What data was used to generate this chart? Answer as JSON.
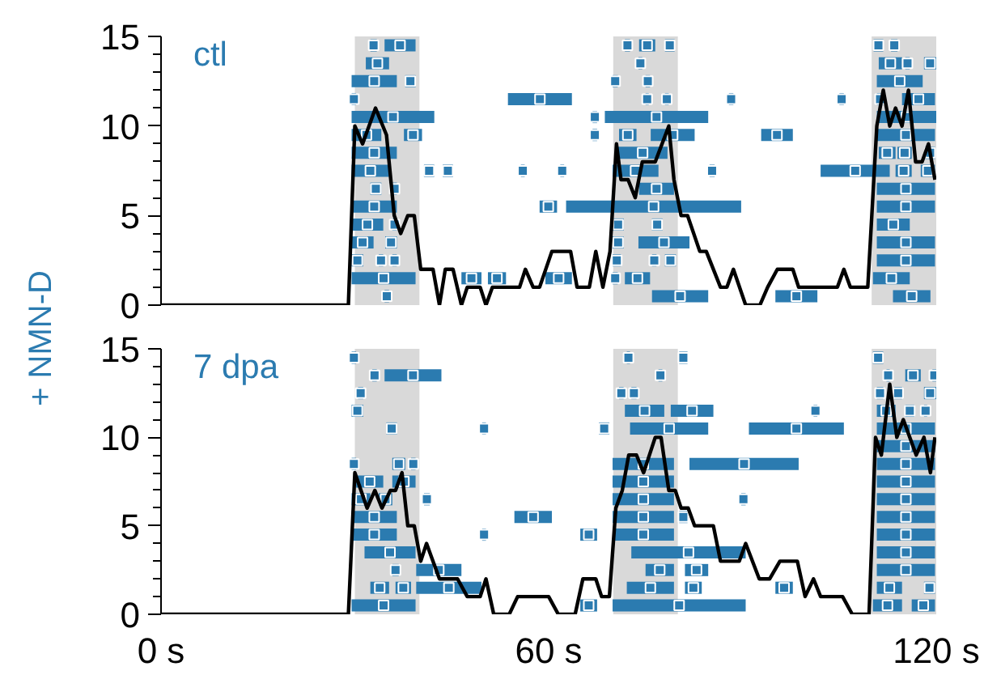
{
  "chart_data": [
    {
      "type": "line",
      "title": "ctl",
      "ylabel": "+ NMN-D",
      "xlim": [
        0,
        120
      ],
      "ylim": [
        0,
        15
      ],
      "tick_labels": "y",
      "line_style": "solid",
      "grid": false,
      "yticks": [
        0,
        {
          "value": 1,
          "label": null
        },
        {
          "value": 2,
          "label": null
        },
        {
          "value": 3,
          "label": null
        },
        {
          "value": 4,
          "label": null
        },
        5,
        {
          "value": 6,
          "label": null
        },
        {
          "value": 7,
          "label": null
        },
        {
          "value": 8,
          "label": null
        },
        {
          "value": 9,
          "label": null
        },
        10,
        {
          "value": 11,
          "label": null
        },
        {
          "value": 12,
          "label": null
        },
        {
          "value": 13,
          "label": null
        },
        {
          "value": 14,
          "label": null
        },
        15
      ],
      "bands": [
        {
          "axis": "x",
          "from": 30,
          "to": 40,
          "color": "#d9d9d9"
        },
        {
          "axis": "x",
          "from": 70,
          "to": 80,
          "color": "#d9d9d9"
        },
        {
          "axis": "x",
          "from": 110,
          "to": 120,
          "color": "#d9d9d9"
        }
      ],
      "series": [
        {
          "type": "scatter",
          "marker": "square",
          "color": "#2b7bb0",
          "x": [
            32.9,
            37,
            72.2,
            75.25,
            78.75,
            111.05,
            113.5,
            33.5,
            74.2,
            112.9,
            115.55,
            119.05,
            33,
            38.6,
            70.3,
            75.35,
            114.35,
            29.85,
            58.65,
            75.25,
            78.3,
            88.25,
            105.35,
            111.3,
            117.25,
            35.9,
            67.15,
            76.7,
            115.4,
            31.8,
            39,
            67.15,
            72.25,
            79.2,
            95.35,
            115.3,
            33,
            74.55,
            112.4,
            115.1,
            119.05,
            32.4,
            41.5,
            44.4,
            56,
            62.1,
            73.45,
            85.3,
            107.45,
            114.95,
            118.7,
            33.25,
            36.15,
            76.7,
            115.3,
            33,
            59.95,
            76.25,
            115.3,
            31.95,
            36.15,
            70.75,
            76.8,
            113.35,
            31.2,
            35.6,
            70.75,
            77.85,
            115.3,
            30.4,
            34.05,
            36.15,
            70.55,
            76.35,
            78.85,
            115.3,
            34.45,
            48.05,
            52,
            61.55,
            70.3,
            73.75,
            113.05,
            34.95,
            80.35,
            98.35,
            116.2
          ],
          "values": [
            14.5,
            14.5,
            14.5,
            14.5,
            14.5,
            14.5,
            14.5,
            13.5,
            13.5,
            13.5,
            13.5,
            13.5,
            12.5,
            12.5,
            12.5,
            12.5,
            12.5,
            11.5,
            11.5,
            11.5,
            11.5,
            11.5,
            11.5,
            11.5,
            11.5,
            10.5,
            10.5,
            10.5,
            10.5,
            9.5,
            9.5,
            9.5,
            9.5,
            9.5,
            9.5,
            9.5,
            8.5,
            8.5,
            8.5,
            8.5,
            8.5,
            7.5,
            7.5,
            7.5,
            7.5,
            7.5,
            7.5,
            7.5,
            7.5,
            7.5,
            7.5,
            6.5,
            6.5,
            6.5,
            6.5,
            5.5,
            5.5,
            5.5,
            5.5,
            4.5,
            4.5,
            4.5,
            4.5,
            4.5,
            3.5,
            3.5,
            3.5,
            3.5,
            3.5,
            2.5,
            2.5,
            2.5,
            2.5,
            2.5,
            2.5,
            2.5,
            1.5,
            1.5,
            1.5,
            1.5,
            1.5,
            1.5,
            1.5,
            0.5,
            0.5,
            0.5,
            0.5
          ],
          "xerrors": [
            [
              32.4,
              33.4
            ],
            [
              34.6,
              39.4
            ],
            [
              71.8,
              72.6
            ],
            [
              74,
              76.5
            ],
            [
              78,
              79.5
            ],
            [
              110.3,
              111.8
            ],
            [
              113,
              114
            ],
            [
              31.7,
              35.3
            ],
            [
              73.9,
              74.5
            ],
            [
              111.1,
              114.7
            ],
            [
              115.2,
              115.9
            ],
            [
              118.1,
              120
            ],
            [
              29.5,
              36.5
            ],
            [
              37.8,
              39.4
            ],
            [
              69.9,
              70.7
            ],
            [
              75,
              75.7
            ],
            [
              110.8,
              117.9
            ],
            [
              29.5,
              30.2
            ],
            [
              53.7,
              63.6
            ],
            [
              75,
              75.5
            ],
            [
              78,
              78.6
            ],
            [
              87.9,
              88.6
            ],
            [
              105,
              105.7
            ],
            [
              110.8,
              111.8
            ],
            [
              114.7,
              119.8
            ],
            [
              29.5,
              42.3
            ],
            [
              66.8,
              67.5
            ],
            [
              68.7,
              84.7
            ],
            [
              110.8,
              120
            ],
            [
              29.5,
              34.1
            ],
            [
              37.6,
              40.4
            ],
            [
              66.8,
              67.5
            ],
            [
              70.9,
              73.6
            ],
            [
              75.8,
              82.6
            ],
            [
              92.9,
              97.8
            ],
            [
              110.8,
              119.8
            ],
            [
              29.5,
              36.5
            ],
            [
              70.7,
              78.4
            ],
            [
              111.1,
              113.7
            ],
            [
              114,
              116.2
            ],
            [
              118.3,
              119.8
            ],
            [
              29.5,
              35.3
            ],
            [
              40.7,
              42.3
            ],
            [
              43.6,
              45.2
            ],
            [
              55.7,
              56.3
            ],
            [
              61.8,
              62.4
            ],
            [
              69.9,
              77
            ],
            [
              84.9,
              85.7
            ],
            [
              102.1,
              112.8
            ],
            [
              113.7,
              116.2
            ],
            [
              117.6,
              119.8
            ],
            [
              32.4,
              34.1
            ],
            [
              35.8,
              36.5
            ],
            [
              74,
              79.4
            ],
            [
              110.8,
              119.8
            ],
            [
              29.5,
              36.5
            ],
            [
              58.6,
              61.3
            ],
            [
              62.7,
              89.8
            ],
            [
              110.8,
              119.8
            ],
            [
              29.5,
              34.4
            ],
            [
              35.8,
              36.5
            ],
            [
              69.9,
              71.6
            ],
            [
              76,
              77.6
            ],
            [
              110.8,
              115.9
            ],
            [
              29.5,
              32.9
            ],
            [
              34.7,
              36.5
            ],
            [
              69.9,
              71.6
            ],
            [
              73.9,
              81.8
            ],
            [
              110.8,
              119.8
            ],
            [
              29.5,
              31.3
            ],
            [
              33.7,
              34.4
            ],
            [
              35.8,
              36.5
            ],
            [
              69.9,
              71.2
            ],
            [
              76,
              76.7
            ],
            [
              78,
              79.7
            ],
            [
              110.8,
              119.8
            ],
            [
              29.5,
              39.4
            ],
            [
              46.5,
              49.6
            ],
            [
              50.6,
              53.4
            ],
            [
              59.5,
              63.6
            ],
            [
              69.9,
              70.7
            ],
            [
              71.8,
              75.7
            ],
            [
              110.2,
              115.9
            ],
            [
              34.6,
              35.3
            ],
            [
              76,
              84.7
            ],
            [
              95.1,
              101.6
            ],
            [
              113.3,
              119.1
            ]
          ]
        },
        {
          "color": "#000000",
          "x": [
            0,
            29.0,
            30,
            31.2,
            33.2,
            34.9,
            36.1,
            37.1,
            38.2,
            39.2,
            40.2,
            42.1,
            43.1,
            44,
            45.2,
            46.5,
            47.4,
            49.4,
            50.3,
            51.3,
            55.5,
            56.4,
            57.6,
            58.6,
            60.5,
            63.4,
            64.4,
            66.3,
            67.3,
            68.4,
            69.5,
            70.5,
            71.2,
            72.3,
            73.4,
            74.5,
            76.5,
            78.6,
            79.4,
            80.5,
            81.5,
            83.4,
            84.4,
            86.6,
            87.6,
            88.6,
            90.5,
            92.7,
            93.9,
            95.4,
            97.8,
            98.7,
            104.7,
            105.7,
            106.7,
            109.4,
            110.8,
            111.8,
            112.8,
            113.7,
            114.7,
            115.7,
            116.8,
            117.8,
            118.8,
            119.8
          ],
          "values": [
            0,
            0,
            10,
            9,
            11,
            9.5,
            5,
            4,
            5,
            5,
            2,
            2,
            0,
            2,
            2,
            0,
            1,
            1,
            0,
            1,
            1,
            2,
            1,
            1,
            3,
            3,
            1,
            1,
            3,
            1,
            3,
            9,
            7,
            7,
            6,
            8,
            8,
            10,
            7,
            5,
            5,
            3,
            3,
            1,
            1,
            2,
            0,
            0,
            1,
            2,
            2,
            1,
            1,
            2,
            1,
            1,
            10,
            12,
            10,
            11,
            10,
            12,
            8,
            8,
            9,
            7
          ]
        }
      ]
    },
    {
      "type": "line",
      "title": "7 dpa",
      "xlim": [
        0,
        120
      ],
      "ylim": [
        0,
        15
      ],
      "line_style": "solid",
      "grid": false,
      "xticks": [
        {
          "value": 0,
          "label": "0 s"
        },
        {
          "value": 60,
          "label": "60 s"
        },
        {
          "value": 120,
          "label": "120 s"
        }
      ],
      "yticks": [
        0,
        {
          "value": 1,
          "label": null
        },
        {
          "value": 2,
          "label": null
        },
        {
          "value": 3,
          "label": null
        },
        {
          "value": 4,
          "label": null
        },
        5,
        {
          "value": 6,
          "label": null
        },
        {
          "value": 7,
          "label": null
        },
        {
          "value": 8,
          "label": null
        },
        {
          "value": 9,
          "label": null
        },
        10,
        {
          "value": 11,
          "label": null
        },
        {
          "value": 12,
          "label": null
        },
        {
          "value": 13,
          "label": null
        },
        {
          "value": 14,
          "label": null
        },
        15
      ],
      "bands": [
        {
          "axis": "x",
          "from": 30,
          "to": 40,
          "color": "#d9d9d9"
        },
        {
          "axis": "x",
          "from": 70,
          "to": 80,
          "color": "#d9d9d9"
        },
        {
          "axis": "x",
          "from": 110,
          "to": 120,
          "color": "#d9d9d9"
        }
      ],
      "series": [
        {
          "type": "scatter",
          "marker": "square",
          "color": "#2b7bb0",
          "x": [
            29.85,
            72.35,
            80.85,
            111,
            33.05,
            39,
            77.3,
            112.55,
            116.4,
            119.7,
            30.9,
            71.25,
            73.2,
            111.3,
            114.1,
            119.05,
            30.4,
            74.85,
            82.2,
            101.3,
            112.25,
            115.9,
            118.35,
            35.7,
            50,
            68.6,
            78.65,
            98.35,
            115.3,
            115.3,
            29.85,
            36.8,
            39.05,
            74.65,
            90.25,
            115.3,
            32.3,
            37.6,
            74.65,
            115.3,
            30.95,
            34.75,
            41.15,
            74.65,
            90.15,
            115.3,
            33,
            57.6,
            74.65,
            80.85,
            115.3,
            33,
            50,
            66.2,
            74.65,
            115.3,
            35.45,
            81.65,
            115.3,
            36.3,
            43,
            77.2,
            82.9,
            115.3,
            33.85,
            37.5,
            44.55,
            75.75,
            82.4,
            96.45,
            112.75,
            118.95,
            34.45,
            66.2,
            80.2,
            112.45,
            118
          ],
          "values": [
            14.5,
            14.5,
            14.5,
            14.5,
            13.5,
            13.5,
            13.5,
            13.5,
            13.5,
            13.5,
            12.5,
            12.5,
            12.5,
            12.5,
            12.5,
            12.5,
            11.5,
            11.5,
            11.5,
            11.5,
            11.5,
            11.5,
            11.5,
            10.5,
            10.5,
            10.5,
            10.5,
            10.5,
            10.5,
            9.5,
            8.5,
            8.5,
            8.5,
            8.5,
            8.5,
            8.5,
            7.5,
            7.5,
            7.5,
            7.5,
            6.5,
            6.5,
            6.5,
            6.5,
            6.5,
            6.5,
            5.5,
            5.5,
            5.5,
            5.5,
            5.5,
            4.5,
            4.5,
            4.5,
            4.5,
            4.5,
            3.5,
            3.5,
            3.5,
            2.5,
            2.5,
            2.5,
            2.5,
            2.5,
            1.5,
            1.5,
            1.5,
            1.5,
            1.5,
            1.5,
            1.5,
            1.5,
            0.5,
            0.5,
            0.5,
            0.5,
            0.5
          ],
          "xerrors": [
            [
              29.5,
              30.2
            ],
            [
              72.1,
              72.6
            ],
            [
              80.2,
              81.5
            ],
            [
              110.2,
              111.8
            ],
            [
              32.7,
              33.4
            ],
            [
              34.6,
              43.4
            ],
            [
              77,
              77.6
            ],
            [
              112.3,
              112.8
            ],
            [
              115.2,
              117.6
            ],
            [
              119.4,
              120
            ],
            [
              30.5,
              31.3
            ],
            [
              70.9,
              71.6
            ],
            [
              72.8,
              73.6
            ],
            [
              110.8,
              111.8
            ],
            [
              113.5,
              114.7
            ],
            [
              118.1,
              120
            ],
            [
              29.5,
              31.3
            ],
            [
              71.8,
              77.9
            ],
            [
              78.9,
              85.5
            ],
            [
              101,
              101.6
            ],
            [
              110.8,
              113.7
            ],
            [
              115.2,
              116.6
            ],
            [
              118.1,
              118.6
            ],
            [
              34.9,
              36.5
            ],
            [
              49.7,
              50.3
            ],
            [
              67.8,
              69.4
            ],
            [
              72.6,
              84.7
            ],
            [
              91,
              105.7
            ],
            [
              110.8,
              119.8
            ],
            [
              110.8,
              119.8
            ],
            [
              29.5,
              30.2
            ],
            [
              35.8,
              37.8
            ],
            [
              38.7,
              39.4
            ],
            [
              69.9,
              79.4
            ],
            [
              81.8,
              98.7
            ],
            [
              110.8,
              119.8
            ],
            [
              30.2,
              34.4
            ],
            [
              35.8,
              39.4
            ],
            [
              69.9,
              79.4
            ],
            [
              110.8,
              119.8
            ],
            [
              29.5,
              32.4
            ],
            [
              33.7,
              35.8
            ],
            [
              40.7,
              41.6
            ],
            [
              69.9,
              79.4
            ],
            [
              89.8,
              90.5
            ],
            [
              110.8,
              119.8
            ],
            [
              29.5,
              36.5
            ],
            [
              54.7,
              60.5
            ],
            [
              69.9,
              79.4
            ],
            [
              80.2,
              81.5
            ],
            [
              110.8,
              119.8
            ],
            [
              29.5,
              36.5
            ],
            [
              49.7,
              50.3
            ],
            [
              64.9,
              67.5
            ],
            [
              69.9,
              79.4
            ],
            [
              110.8,
              119.8
            ],
            [
              31.5,
              39.4
            ],
            [
              72.8,
              90.5
            ],
            [
              110.8,
              119.8
            ],
            [
              35.8,
              36.8
            ],
            [
              39.5,
              46.5
            ],
            [
              75,
              79.4
            ],
            [
              81.1,
              84.7
            ],
            [
              110.8,
              119.8
            ],
            [
              32.4,
              35.3
            ],
            [
              36.3,
              38.7
            ],
            [
              39.5,
              49.6
            ],
            [
              72.1,
              79.4
            ],
            [
              81.1,
              83.7
            ],
            [
              95.1,
              97.8
            ],
            [
              110.8,
              114.7
            ],
            [
              118.1,
              119.8
            ],
            [
              29.5,
              39.4
            ],
            [
              64.9,
              67.5
            ],
            [
              69.9,
              90.5
            ],
            [
              110.2,
              114.7
            ],
            [
              116.2,
              119.8
            ]
          ]
        },
        {
          "color": "#000000",
          "x": [
            0,
            29,
            30,
            31.9,
            33.1,
            34.2,
            35.5,
            36.3,
            37.3,
            38.2,
            39.2,
            40.2,
            41.1,
            42.1,
            43.1,
            45.9,
            47.4,
            49.4,
            50.3,
            51.5,
            53.9,
            55.2,
            60,
            61.5,
            64.1,
            65.3,
            67.3,
            68.2,
            69.4,
            70.4,
            71.4,
            72.4,
            73.6,
            74.7,
            76.5,
            77.4,
            78.6,
            79.6,
            80.5,
            81.6,
            82.6,
            85.5,
            86.6,
            89.5,
            90.5,
            92.6,
            94.2,
            95.8,
            98.5,
            99.7,
            101,
            102.1,
            105.5,
            107,
            109.6,
            110.6,
            111.5,
            112.8,
            113.9,
            114.9,
            116.9,
            118.1,
            119.1,
            119.8
          ],
          "values": [
            0,
            0,
            8,
            6,
            7,
            6,
            7,
            7,
            8,
            5,
            5,
            3,
            4,
            3,
            2,
            2,
            1,
            1,
            2,
            0,
            0,
            1,
            1,
            0,
            0,
            2,
            2,
            1,
            1,
            6,
            7,
            9,
            9,
            8,
            10,
            10,
            7,
            7,
            6,
            6,
            5,
            5,
            3,
            3,
            4,
            2,
            2,
            3,
            3,
            1,
            2,
            1,
            1,
            0,
            0,
            10,
            9,
            13,
            10,
            11,
            9,
            10,
            8,
            10
          ]
        }
      ]
    }
  ]
}
